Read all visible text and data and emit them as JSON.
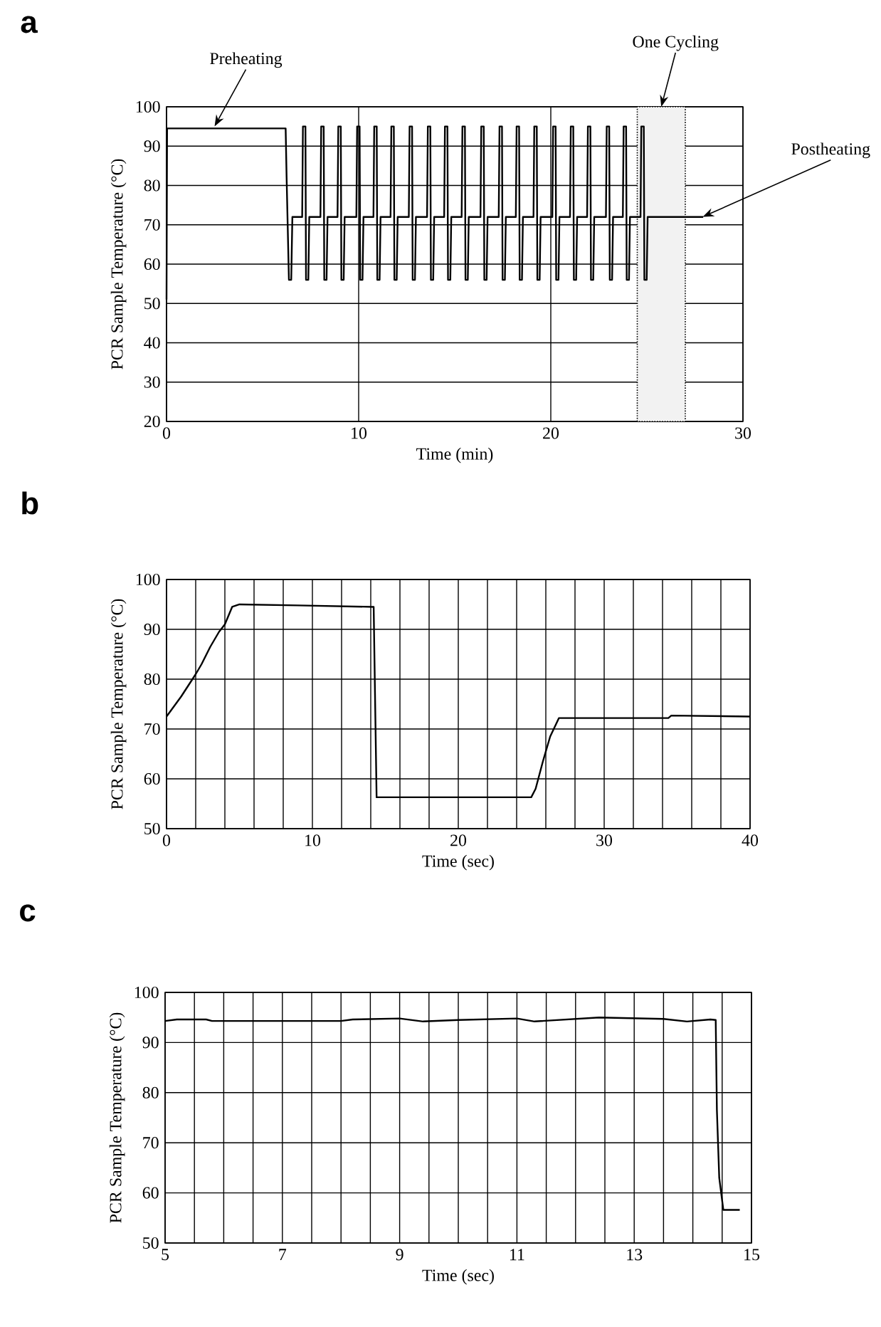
{
  "chart_data": [
    {
      "type": "line",
      "title": "a",
      "xlabel": "Time (min)",
      "ylabel": "PCR Sample Temperature (°C)",
      "xlim": [
        0,
        30
      ],
      "ylim": [
        20,
        100
      ],
      "xticks": [
        0,
        10,
        20,
        30
      ],
      "yticks": [
        20,
        30,
        40,
        50,
        60,
        70,
        80,
        90,
        100
      ],
      "grid": true,
      "marker": "none",
      "line_style": "solid",
      "series": [
        {
          "color": "#000000",
          "x": [
            0,
            0.03,
            6.2,
            6.25,
            6.37,
            6.49,
            6.55,
            7.06,
            7.1,
            7.23,
            7.26,
            7.38,
            7.43,
            8.01,
            8.05,
            8.18,
            8.21,
            8.33,
            8.38,
            8.9,
            8.94,
            9.07,
            9.1,
            9.22,
            9.27,
            9.88,
            9.92,
            10.05,
            10.08,
            10.2,
            10.25,
            10.77,
            10.81,
            10.94,
            10.97,
            11.09,
            11.14,
            11.66,
            11.7,
            11.83,
            11.86,
            11.98,
            12.03,
            12.61,
            12.65,
            12.78,
            12.81,
            12.93,
            12.98,
            13.56,
            13.6,
            13.73,
            13.76,
            13.88,
            13.93,
            14.45,
            14.49,
            14.62,
            14.65,
            14.77,
            14.82,
            15.36,
            15.4,
            15.53,
            15.56,
            15.68,
            15.73,
            16.34,
            16.38,
            16.51,
            16.54,
            16.66,
            16.71,
            17.29,
            17.33,
            17.46,
            17.49,
            17.61,
            17.66,
            18.18,
            18.22,
            18.35,
            18.38,
            18.5,
            18.55,
            19.1,
            19.14,
            19.27,
            19.3,
            19.42,
            19.47,
            20.08,
            20.12,
            20.25,
            20.28,
            20.4,
            20.45,
            21.0,
            21.04,
            21.17,
            21.2,
            21.32,
            21.37,
            21.89,
            21.93,
            22.06,
            22.09,
            22.21,
            22.26,
            22.87,
            22.91,
            23.04,
            23.07,
            23.19,
            23.24,
            23.75,
            23.79,
            23.92,
            23.95,
            24.07,
            24.12,
            24.67,
            24.71,
            24.84,
            24.87,
            24.99,
            25.04,
            27.93
          ],
          "values": [
            51,
            94.5,
            94.5,
            82,
            56,
            56,
            72,
            72,
            95,
            95,
            56,
            56,
            72,
            72,
            95,
            95,
            56,
            56,
            72,
            72,
            95,
            95,
            56,
            56,
            72,
            72,
            95,
            95,
            56,
            56,
            72,
            72,
            95,
            95,
            56,
            56,
            72,
            72,
            95,
            95,
            56,
            56,
            72,
            72,
            95,
            95,
            56,
            56,
            72,
            72,
            95,
            95,
            56,
            56,
            72,
            72,
            95,
            95,
            56,
            56,
            72,
            72,
            95,
            95,
            56,
            56,
            72,
            72,
            95,
            95,
            56,
            56,
            72,
            72,
            95,
            95,
            56,
            56,
            72,
            72,
            95,
            95,
            56,
            56,
            72,
            72,
            95,
            95,
            56,
            56,
            72,
            72,
            95,
            95,
            56,
            56,
            72,
            72,
            95,
            95,
            56,
            56,
            72,
            72,
            95,
            95,
            56,
            56,
            72,
            72,
            95,
            95,
            56,
            56,
            72,
            72,
            95,
            95,
            56,
            56,
            72,
            72,
            95,
            95,
            56,
            56,
            72,
            72
          ]
        }
      ],
      "bands": [
        {
          "axis": "x",
          "from": 24.5,
          "to": 27,
          "label": "One Cycling",
          "color": "#f2f2f2"
        }
      ],
      "annotations": [
        {
          "text": "Preheating",
          "x": 2.5,
          "y": 95
        },
        {
          "text": "Postheating",
          "x": 27.9,
          "y": 72
        }
      ]
    },
    {
      "type": "line",
      "title": "b",
      "xlabel": "Time (sec)",
      "ylabel": "PCR Sample Temperature (°C)",
      "xlim": [
        0,
        40
      ],
      "ylim": [
        50,
        100
      ],
      "grid": true,
      "marker": "none",
      "line_style": "solid",
      "xticks": [
        0,
        {
          "value": 2,
          "label": null
        },
        {
          "value": 4,
          "label": null
        },
        {
          "value": 6,
          "label": null
        },
        {
          "value": 8,
          "label": null
        },
        10,
        {
          "value": 12,
          "label": null
        },
        {
          "value": 14,
          "label": null
        },
        {
          "value": 16,
          "label": null
        },
        {
          "value": 18,
          "label": null
        },
        20,
        {
          "value": 22,
          "label": null
        },
        {
          "value": 24,
          "label": null
        },
        {
          "value": 26,
          "label": null
        },
        {
          "value": 28,
          "label": null
        },
        30,
        {
          "value": 32,
          "label": null
        },
        {
          "value": 34,
          "label": null
        },
        {
          "value": 36,
          "label": null
        },
        {
          "value": 38,
          "label": null
        },
        40
      ],
      "yticks": [
        50,
        60,
        70,
        80,
        90,
        100
      ],
      "series": [
        {
          "color": "#000000",
          "x": [
            0,
            1,
            2,
            2.4,
            3,
            3.6,
            4,
            4.5,
            5,
            9,
            14.2,
            14.4,
            25,
            25.3,
            25.8,
            26.3,
            26.9,
            34.4,
            34.6,
            40
          ],
          "values": [
            72.5,
            76.5,
            81,
            83,
            86.5,
            89.5,
            91,
            94.5,
            95,
            94.8,
            94.5,
            56.3,
            56.3,
            58,
            63.5,
            68.5,
            72.2,
            72.2,
            72.7,
            72.5
          ]
        }
      ]
    },
    {
      "type": "line",
      "title": "c",
      "xlabel": "Time (sec)",
      "ylabel": "PCR Sample Temperature (°C)",
      "xlim": [
        5,
        15
      ],
      "ylim": [
        50,
        100
      ],
      "grid": true,
      "marker": "none",
      "line_style": "solid",
      "xticks": [
        5,
        {
          "value": 5.5,
          "label": null
        },
        {
          "value": 6,
          "label": null
        },
        {
          "value": 6.5,
          "label": null
        },
        7,
        {
          "value": 7.5,
          "label": null
        },
        {
          "value": 8,
          "label": null
        },
        {
          "value": 8.5,
          "label": null
        },
        9,
        {
          "value": 9.5,
          "label": null
        },
        {
          "value": 10,
          "label": null
        },
        {
          "value": 10.5,
          "label": null
        },
        11,
        {
          "value": 11.5,
          "label": null
        },
        {
          "value": 12,
          "label": null
        },
        {
          "value": 12.5,
          "label": null
        },
        13,
        {
          "value": 13.5,
          "label": null
        },
        {
          "value": 14,
          "label": null
        },
        {
          "value": 14.5,
          "label": null
        },
        15
      ],
      "yticks": [
        50,
        60,
        70,
        80,
        90,
        100
      ],
      "series": [
        {
          "color": "#000000",
          "x": [
            5,
            5.2,
            5.7,
            5.8,
            8,
            8.2,
            9,
            9.4,
            10,
            11,
            11.3,
            12.4,
            13.5,
            13.9,
            14.3,
            14.39,
            14.41,
            14.45,
            14.52,
            14.8
          ],
          "values": [
            94.3,
            94.6,
            94.6,
            94.3,
            94.3,
            94.6,
            94.8,
            94.2,
            94.5,
            94.8,
            94.2,
            95,
            94.7,
            94.2,
            94.6,
            94.5,
            76.6,
            63,
            56.6,
            56.6
          ]
        }
      ]
    }
  ]
}
